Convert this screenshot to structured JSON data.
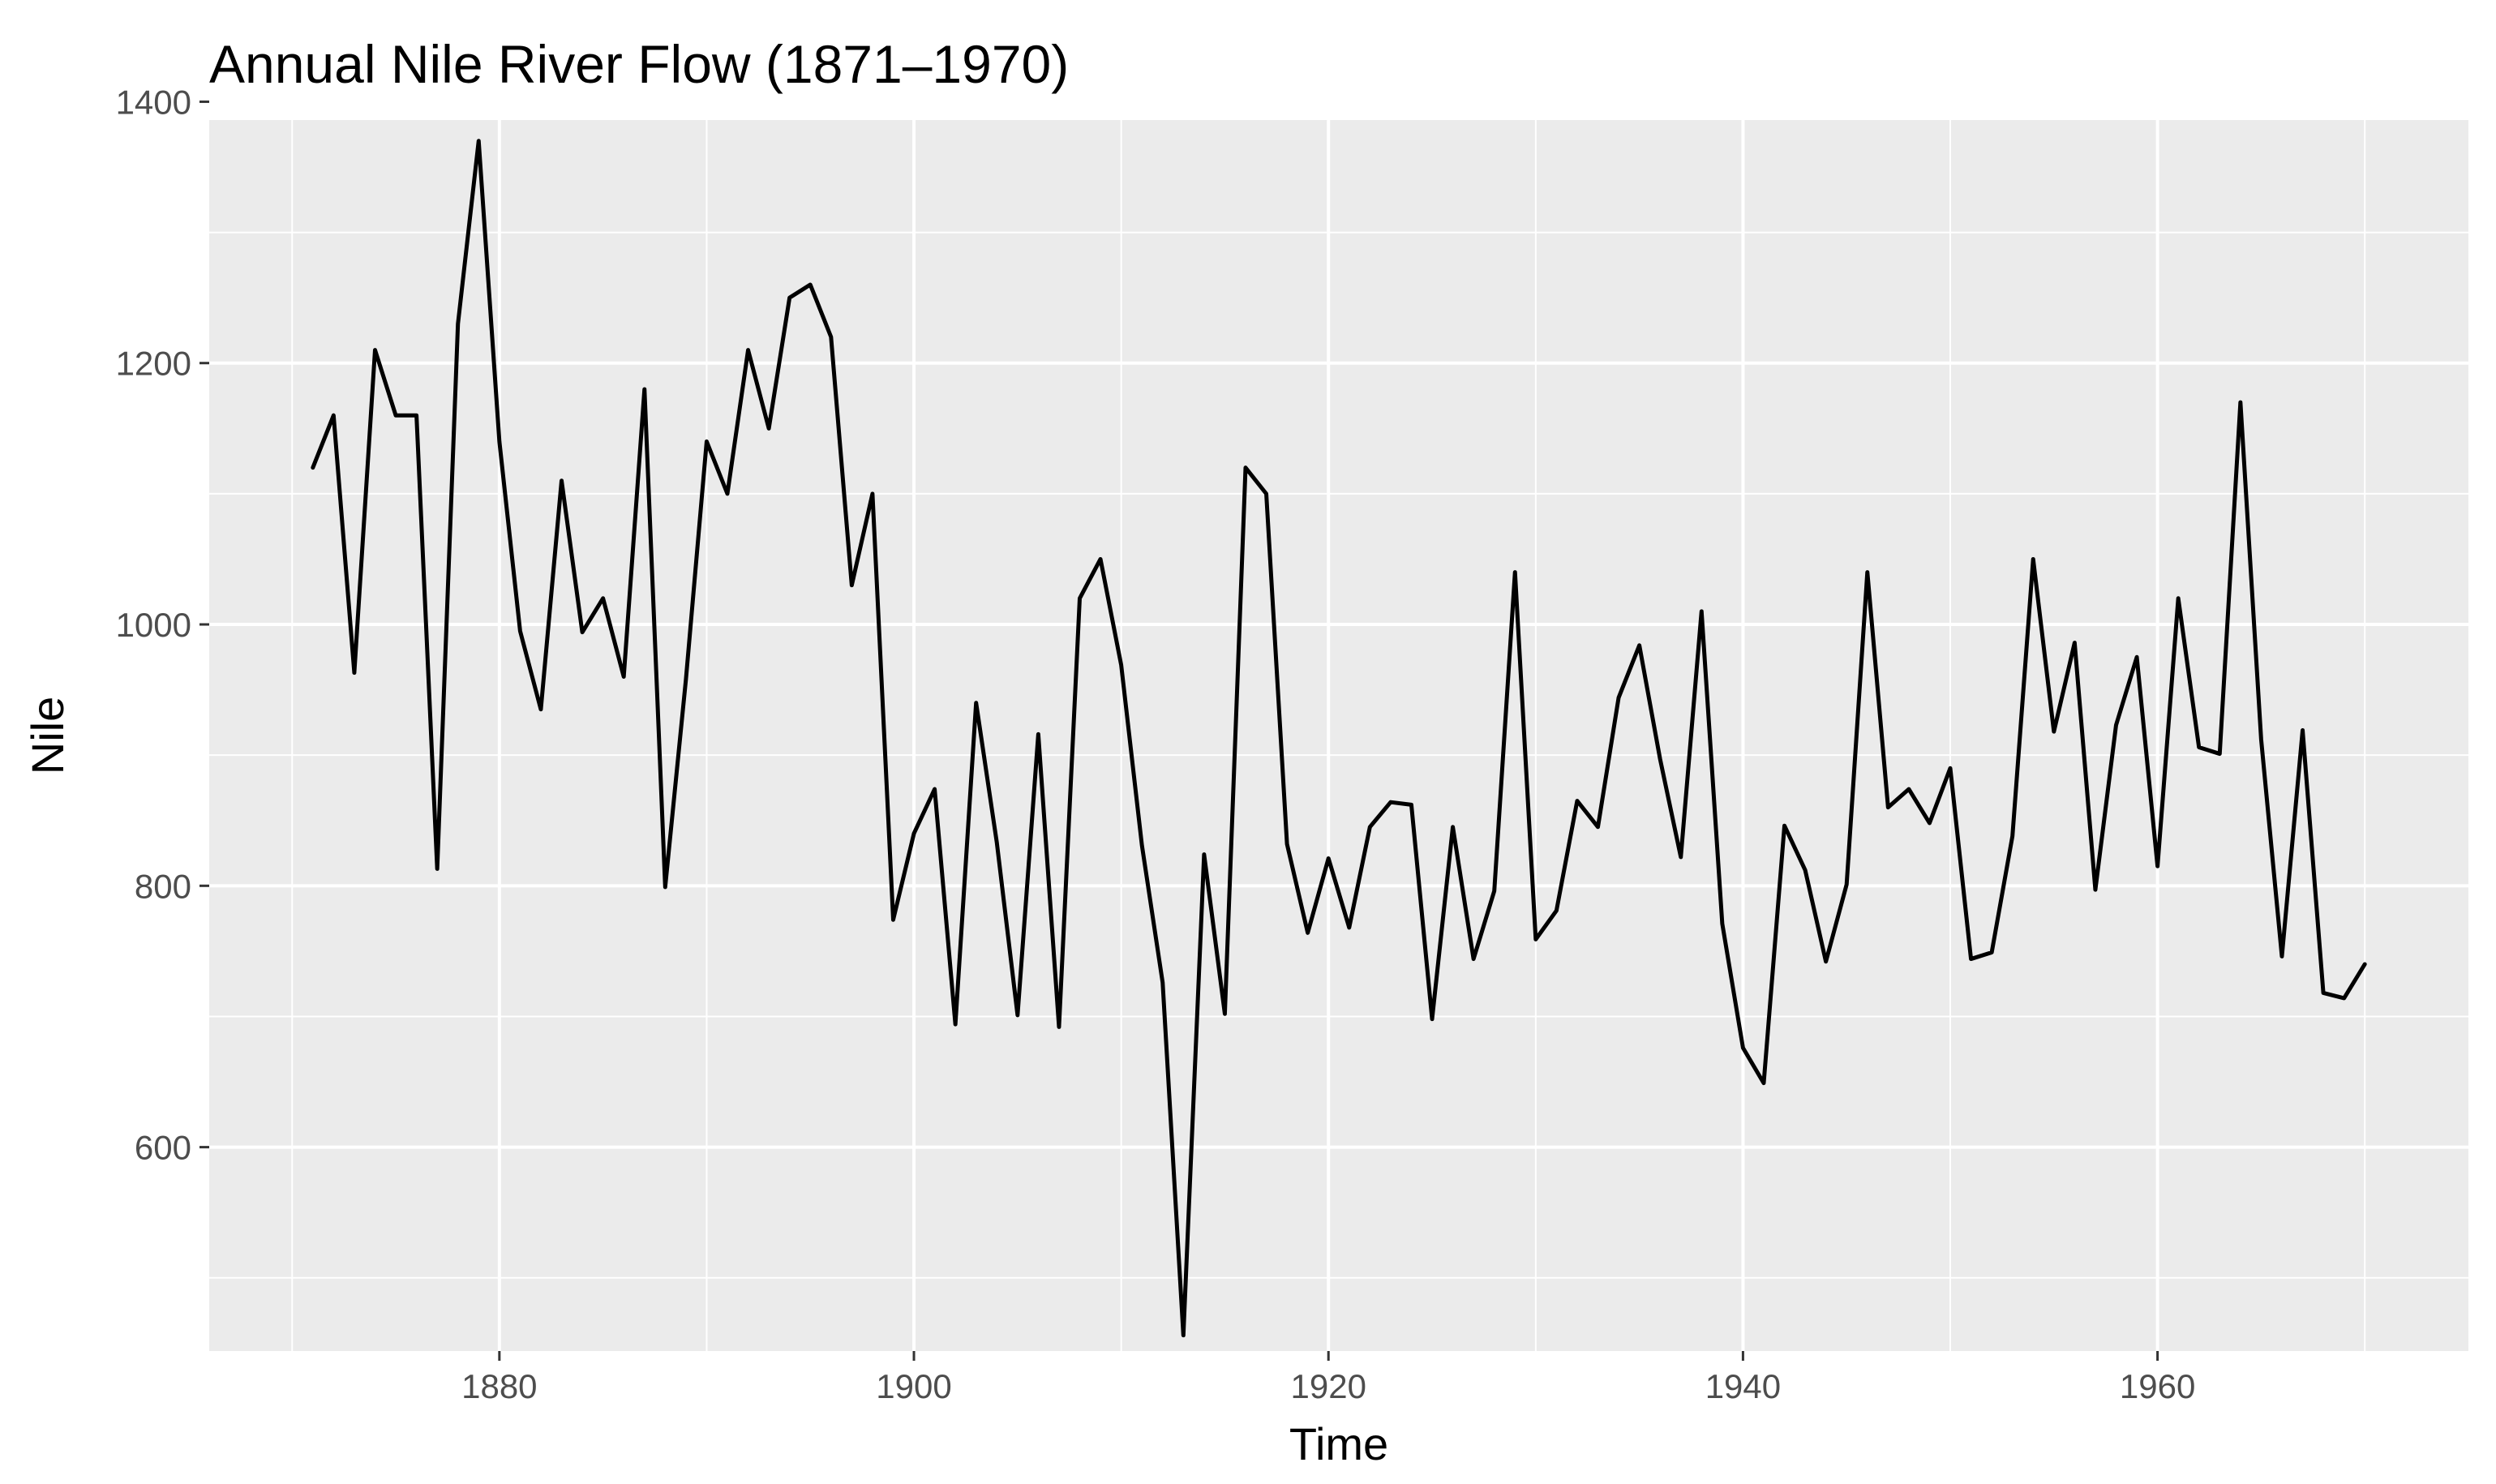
{
  "chart_data": {
    "type": "line",
    "title": "Annual Nile River Flow (1871–1970)",
    "xlabel": "Time",
    "ylabel": "Nile",
    "xlim": [
      1866,
      1975
    ],
    "ylim": [
      444,
      1386
    ],
    "x_ticks": [
      1880,
      1900,
      1920,
      1940,
      1960
    ],
    "x_minor_ticks": [
      1870,
      1890,
      1910,
      1930,
      1950,
      1970
    ],
    "y_ticks": [
      600,
      800,
      1000,
      1200,
      1400
    ],
    "y_minor_ticks": [
      500,
      700,
      900,
      1100,
      1300
    ],
    "grid": true,
    "legend": "none",
    "colors": {
      "panel": "#ebebeb",
      "grid": "#ffffff",
      "line": "#000000",
      "tick_text": "#4d4d4d"
    },
    "series": [
      {
        "x_start": 1871,
        "values": [
          1120,
          1160,
          963,
          1210,
          1160,
          1160,
          813,
          1230,
          1370,
          1140,
          995,
          935,
          1110,
          994,
          1020,
          960,
          1180,
          799,
          958,
          1140,
          1100,
          1210,
          1150,
          1250,
          1260,
          1220,
          1030,
          1100,
          774,
          840,
          874,
          694,
          940,
          833,
          701,
          916,
          692,
          1020,
          1050,
          969,
          831,
          726,
          456,
          824,
          702,
          1120,
          1100,
          832,
          764,
          821,
          768,
          845,
          864,
          862,
          698,
          845,
          744,
          796,
          1040,
          759,
          781,
          865,
          845,
          944,
          984,
          897,
          822,
          1010,
          771,
          676,
          649,
          846,
          812,
          742,
          801,
          1040,
          860,
          874,
          848,
          890,
          744,
          749,
          838,
          1050,
          918,
          986,
          797,
          923,
          975,
          815,
          1020,
          906,
          901,
          1170,
          912,
          746,
          919,
          718,
          714,
          740
        ]
      }
    ]
  }
}
